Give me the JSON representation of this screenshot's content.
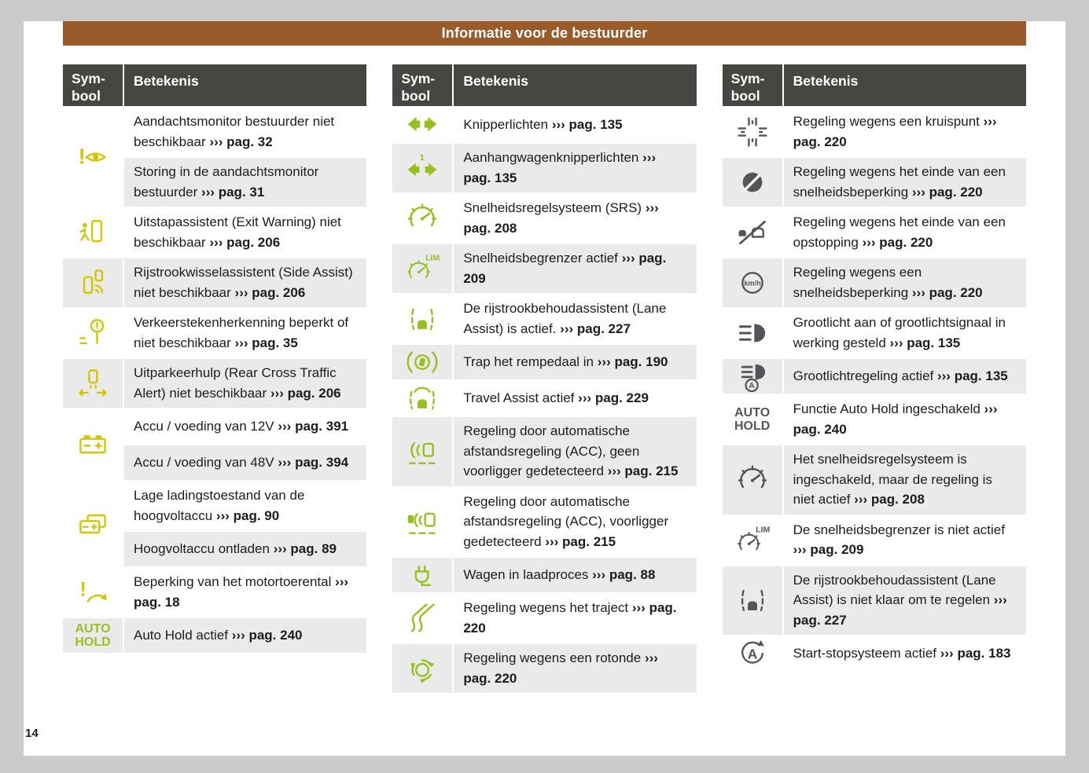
{
  "header": {
    "title": "Informatie voor de bestuurder"
  },
  "footer": {
    "page_number": "14"
  },
  "col_header": {
    "symbol": "Sym-bool",
    "meaning": "Betekenis"
  },
  "colors": {
    "title_bar": "#9a5b2a",
    "table_header": "#474643",
    "row_alt": "#eaeaea",
    "icon": {
      "yellow": "#d3c600",
      "green": "#95c11f",
      "gray": "#54555a"
    }
  },
  "columns": [
    {
      "groups": [
        {
          "icon": "driver-attention-monitor-icon",
          "icon_color": "yellow",
          "rows": [
            {
              "text": "Aandachtsmonitor bestuurder niet beschikbaar",
              "ref": "››› pag. 32"
            },
            {
              "text": "Storing in de aandachtsmonitor bestuurder",
              "ref": "››› pag. 31"
            }
          ]
        },
        {
          "icon": "exit-warning-icon",
          "icon_color": "yellow",
          "rows": [
            {
              "text": "Uitstapassistent (Exit Warning) niet beschikbaar",
              "ref": "››› pag. 206"
            }
          ]
        },
        {
          "icon": "side-assist-icon",
          "icon_color": "yellow",
          "rows": [
            {
              "text": "Rijstrookwisselassistent (Side Assist) niet beschikbaar",
              "ref": "››› pag. 206"
            }
          ]
        },
        {
          "icon": "traffic-sign-recognition-icon",
          "icon_color": "yellow",
          "rows": [
            {
              "text": "Verkeerstekenherkenning beperkt of niet beschikbaar",
              "ref": "››› pag. 35"
            }
          ]
        },
        {
          "icon": "rear-cross-traffic-icon",
          "icon_color": "yellow",
          "rows": [
            {
              "text": "Uitparkeerhulp (Rear Cross Traffic Alert) niet beschikbaar",
              "ref": "››› pag. 206"
            }
          ]
        },
        {
          "icon": "battery-icon",
          "icon_color": "yellow",
          "rows": [
            {
              "text": "Accu / voeding van 12V",
              "ref": "››› pag. 391"
            },
            {
              "text": "Accu / voeding van 48V",
              "ref": "››› pag. 394"
            }
          ]
        },
        {
          "icon": "high-voltage-battery-icon",
          "icon_color": "yellow",
          "rows": [
            {
              "text": "Lage ladingstoestand van de hoogvoltaccu",
              "ref": "››› pag. 90"
            },
            {
              "text": "Hoogvoltaccu ontladen",
              "ref": "››› pag. 89"
            }
          ]
        },
        {
          "icon": "engine-speed-limit-icon",
          "icon_color": "yellow",
          "rows": [
            {
              "text": "Beperking van het motortoerental",
              "ref": "››› pag. 18"
            }
          ]
        },
        {
          "icon": "auto-hold-icon",
          "icon_color": "green",
          "rows": [
            {
              "text": "Auto Hold actief",
              "ref": "››› pag. 240"
            }
          ]
        }
      ]
    },
    {
      "groups": [
        {
          "icon": "turn-signal-arrows-icon",
          "icon_color": "green",
          "rows": [
            {
              "text": "Knipperlichten",
              "ref": "››› pag. 135"
            }
          ]
        },
        {
          "icon": "trailer-turn-signal-arrows-icon",
          "icon_color": "green",
          "rows": [
            {
              "text": "Aanhangwagenknipperlichten",
              "ref": "››› pag. 135"
            }
          ]
        },
        {
          "icon": "cruise-control-icon",
          "icon_color": "green",
          "rows": [
            {
              "text": "Snelheidsregelsysteem (SRS)",
              "ref": "››› pag. 208"
            }
          ]
        },
        {
          "icon": "speed-limiter-icon",
          "icon_color": "green",
          "rows": [
            {
              "text": "Snelheidsbegrenzer actief",
              "ref": "››› pag. 209"
            }
          ]
        },
        {
          "icon": "lane-assist-icon",
          "icon_color": "green",
          "rows": [
            {
              "text": "De rijstrookbehoudassistent (Lane Assist) is actief.",
              "ref": "››› pag. 227"
            }
          ]
        },
        {
          "icon": "brake-pedal-icon",
          "icon_color": "green",
          "rows": [
            {
              "text": "Trap het rempedaal in",
              "ref": "››› pag. 190"
            }
          ]
        },
        {
          "icon": "travel-assist-icon",
          "icon_color": "green",
          "rows": [
            {
              "text": "Travel Assist actief",
              "ref": "››› pag. 229"
            }
          ]
        },
        {
          "icon": "acc-no-vehicle-icon",
          "icon_color": "green",
          "rows": [
            {
              "text": "Regeling door automatische afstandsregeling (ACC), geen voorligger gedetecteerd",
              "ref": "››› pag. 215"
            }
          ]
        },
        {
          "icon": "acc-vehicle-icon",
          "icon_color": "green",
          "rows": [
            {
              "text": "Regeling door automatische afstandsregeling (ACC), voorligger gedetecteerd",
              "ref": "››› pag. 215"
            }
          ]
        },
        {
          "icon": "charging-plug-icon",
          "icon_color": "green",
          "rows": [
            {
              "text": "Wagen in laadproces",
              "ref": "››› pag. 88"
            }
          ]
        },
        {
          "icon": "route-regulation-icon",
          "icon_color": "green",
          "rows": [
            {
              "text": "Regeling wegens het traject",
              "ref": "››› pag. 220"
            }
          ]
        },
        {
          "icon": "roundabout-icon",
          "icon_color": "green",
          "rows": [
            {
              "text": "Regeling wegens een rotonde",
              "ref": "››› pag. 220"
            }
          ]
        }
      ]
    },
    {
      "groups": [
        {
          "icon": "junction-icon",
          "icon_color": "gray",
          "rows": [
            {
              "text": "Regeling wegens een kruispunt",
              "ref": "››› pag. 220"
            }
          ]
        },
        {
          "icon": "end-of-speed-limit-icon",
          "icon_color": "gray",
          "rows": [
            {
              "text": "Regeling wegens het einde van een snelheidsbeperking",
              "ref": "››› pag. 220"
            }
          ]
        },
        {
          "icon": "end-of-congestion-icon",
          "icon_color": "gray",
          "rows": [
            {
              "text": "Regeling wegens het einde van een opstopping",
              "ref": "››› pag. 220"
            }
          ]
        },
        {
          "icon": "speed-limit-regulation-icon",
          "icon_color": "gray",
          "rows": [
            {
              "text": "Regeling wegens een snelheidsbeperking",
              "ref": "››› pag. 220"
            }
          ]
        },
        {
          "icon": "high-beam-icon",
          "icon_color": "gray",
          "rows": [
            {
              "text": "Grootlicht aan of grootlichtsignaal in werking gesteld",
              "ref": "››› pag. 135"
            }
          ]
        },
        {
          "icon": "auto-high-beam-icon",
          "icon_color": "gray",
          "rows": [
            {
              "text": "Grootlichtregeling actief",
              "ref": "››› pag. 135"
            }
          ]
        },
        {
          "icon": "auto-hold-icon",
          "icon_color": "gray",
          "rows": [
            {
              "text": "Functie Auto Hold ingeschakeld",
              "ref": "››› pag. 240"
            }
          ]
        },
        {
          "icon": "cruise-control-inactive-icon",
          "icon_color": "gray",
          "rows": [
            {
              "text": "Het snelheidsregelsysteem is ingeschakeld, maar de regeling is niet actief",
              "ref": "››› pag. 208"
            }
          ]
        },
        {
          "icon": "speed-limiter-inactive-icon",
          "icon_color": "gray",
          "rows": [
            {
              "text": "De snelheidsbegrenzer is niet actief",
              "ref": "››› pag. 209"
            }
          ]
        },
        {
          "icon": "lane-assist-not-ready-icon",
          "icon_color": "gray",
          "rows": [
            {
              "text": "De rijstrookbehoudassistent (Lane Assist) is niet klaar om te regelen",
              "ref": "››› pag. 227"
            }
          ]
        },
        {
          "icon": "start-stop-icon",
          "icon_color": "gray",
          "rows": [
            {
              "text": "Start-stopsysteem actief",
              "ref": "››› pag. 183"
            }
          ]
        }
      ]
    }
  ]
}
